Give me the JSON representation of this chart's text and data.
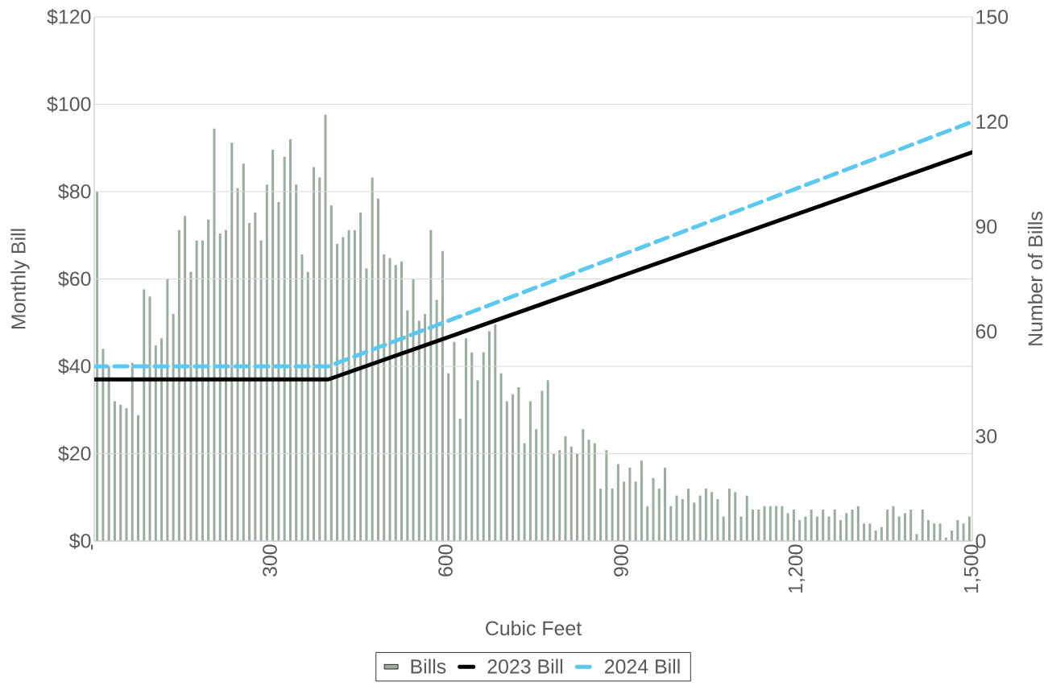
{
  "chart_data": {
    "type": "bar",
    "xlabel": "Cubic Feet",
    "ylabel": "Monthly Bill",
    "y2label": "Number of Bills",
    "xlim": [
      0,
      1500
    ],
    "xticks": [
      {
        "value": 0,
        "label": "-"
      },
      300,
      600,
      900,
      {
        "value": 1200,
        "label": "1,200"
      },
      {
        "value": 1500,
        "label": "1,500"
      }
    ],
    "ylim": [
      0,
      120
    ],
    "yticks": [
      {
        "value": 0,
        "label": "$0"
      },
      {
        "value": 20,
        "label": "$20"
      },
      {
        "value": 40,
        "label": "$40"
      },
      {
        "value": 60,
        "label": "$60"
      },
      {
        "value": 80,
        "label": "$80"
      },
      {
        "value": 100,
        "label": "$100"
      },
      {
        "value": 120,
        "label": "$120"
      }
    ],
    "y2lim": [
      0,
      150
    ],
    "y2ticks": [
      0,
      30,
      60,
      90,
      120,
      150
    ],
    "grid": "y",
    "legend": "bottom",
    "series": [
      {
        "name": "Bills",
        "axis": "y2",
        "color": "#98ad9e",
        "x": [
          5,
          15,
          25,
          35,
          45,
          55,
          65,
          75,
          85,
          95,
          105,
          115,
          125,
          135,
          145,
          155,
          165,
          175,
          185,
          195,
          205,
          215,
          225,
          235,
          245,
          255,
          265,
          275,
          285,
          295,
          305,
          315,
          325,
          335,
          345,
          355,
          365,
          375,
          385,
          395,
          405,
          415,
          425,
          435,
          445,
          455,
          465,
          475,
          485,
          495,
          505,
          515,
          525,
          535,
          545,
          555,
          565,
          575,
          585,
          595,
          605,
          615,
          625,
          635,
          645,
          655,
          665,
          675,
          685,
          695,
          705,
          715,
          725,
          735,
          745,
          755,
          765,
          775,
          785,
          795,
          805,
          815,
          825,
          835,
          845,
          855,
          865,
          875,
          885,
          895,
          905,
          915,
          925,
          935,
          945,
          955,
          965,
          975,
          985,
          995,
          1005,
          1015,
          1025,
          1035,
          1045,
          1055,
          1065,
          1075,
          1085,
          1095,
          1105,
          1115,
          1125,
          1135,
          1145,
          1155,
          1165,
          1175,
          1185,
          1195,
          1205,
          1215,
          1225,
          1235,
          1245,
          1255,
          1265,
          1275,
          1285,
          1295,
          1305,
          1315,
          1325,
          1335,
          1345,
          1355,
          1365,
          1375,
          1385,
          1395,
          1405,
          1415,
          1425,
          1435,
          1445,
          1455,
          1465,
          1475,
          1485,
          1495
        ],
        "values": [
          100,
          55,
          50,
          40,
          39,
          38,
          51,
          36,
          72,
          70,
          56,
          58,
          75,
          65,
          89,
          93,
          77,
          86,
          86,
          92,
          118,
          88,
          89,
          114,
          101,
          108,
          91,
          94,
          86,
          102,
          112,
          97,
          110,
          115,
          102,
          82,
          77,
          107,
          104,
          122,
          96,
          85,
          87,
          89,
          89,
          94,
          78,
          104,
          98,
          82,
          81,
          79,
          80,
          66,
          75,
          63,
          65,
          89,
          69,
          83,
          48,
          57,
          35,
          58,
          54,
          46,
          54,
          60,
          62,
          48,
          40,
          42,
          44,
          28,
          40,
          32,
          43,
          46,
          25,
          26,
          30,
          27,
          25,
          32,
          29,
          28,
          15,
          26,
          15,
          22,
          17,
          21,
          17,
          23,
          10,
          18,
          15,
          21,
          10,
          13,
          12,
          15,
          11,
          13,
          15,
          14,
          12,
          7,
          15,
          14,
          7,
          13,
          9,
          9,
          10,
          10,
          10,
          10,
          8,
          9,
          6,
          7,
          9,
          7,
          9,
          7,
          9,
          6,
          8,
          9,
          10,
          5,
          5,
          3,
          4,
          9,
          10,
          7,
          8,
          9,
          2,
          9,
          6,
          5,
          5,
          1,
          3,
          6,
          5,
          7
        ]
      },
      {
        "name": "2023 Bill",
        "type": "line",
        "color": "#000000",
        "line_style": "solid",
        "x": [
          0,
          400,
          1500
        ],
        "values": [
          37,
          37,
          89
        ]
      },
      {
        "name": "2024 Bill",
        "type": "line",
        "color": "#5bc8f0",
        "line_style": "dashed",
        "x": [
          0,
          400,
          1500
        ],
        "values": [
          40,
          40,
          96
        ]
      }
    ]
  }
}
